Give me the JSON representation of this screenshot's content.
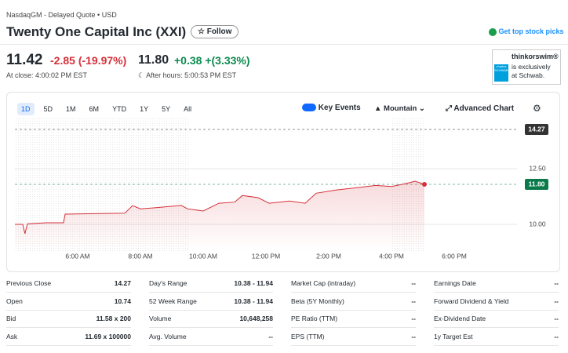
{
  "header": {
    "exchange": "NasdaqGM - Delayed Quote • USD",
    "title": "Twenty One Capital Inc (XXI)",
    "follow": "Follow",
    "promo": "Get top stock picks"
  },
  "quote": {
    "price": "11.42",
    "change": "-2.85",
    "change_pct": "(-19.97%)",
    "close_time": "At close: 4:00:02 PM EST",
    "ah_price": "11.80",
    "ah_change": "+0.38",
    "ah_change_pct": "+(3.33%)",
    "ah_time": "After hours: 5:00:53 PM EST"
  },
  "ad": {
    "brand": "thinkorswim®",
    "line1": "is exclusively",
    "line2": "at Schwab.",
    "logo": "charles SCHWAB"
  },
  "toolbar": {
    "ranges": [
      "1D",
      "5D",
      "1M",
      "6M",
      "YTD",
      "1Y",
      "5Y",
      "All"
    ],
    "key_events": "Key Events",
    "chart_type": "Mountain",
    "advanced": "Advanced Chart"
  },
  "chart_data": {
    "type": "line",
    "series": [
      {
        "name": "XXI",
        "color": "#d6303a",
        "x": [
          4.0,
          4.25,
          4.32,
          4.4,
          5.0,
          5.55,
          5.6,
          6.5,
          7.5,
          7.75,
          8.0,
          8.5,
          9.3,
          9.5,
          10.0,
          10.5,
          11.0,
          11.25,
          11.75,
          12.1,
          12.75,
          13.25,
          13.6,
          14.25,
          14.9,
          15.5,
          16.0,
          16.5,
          16.75,
          17.05
        ],
        "values": [
          10.0,
          10.0,
          9.58,
          10.02,
          10.07,
          10.07,
          10.46,
          10.48,
          10.5,
          10.84,
          10.7,
          10.75,
          10.85,
          10.7,
          10.6,
          10.95,
          11.0,
          11.3,
          11.2,
          10.95,
          11.05,
          10.95,
          11.4,
          11.55,
          11.65,
          11.75,
          11.7,
          11.85,
          11.94,
          11.8
        ]
      }
    ],
    "xlim": [
      4,
      20
    ],
    "xticks": [
      {
        "value": 6,
        "label": "6:00 AM"
      },
      {
        "value": 8,
        "label": "8:00 AM"
      },
      {
        "value": 10,
        "label": "10:00 AM"
      },
      {
        "value": 12,
        "label": "12:00 PM"
      },
      {
        "value": 14,
        "label": "2:00 PM"
      },
      {
        "value": 16,
        "label": "4:00 PM"
      },
      {
        "value": 18,
        "label": "6:00 PM"
      }
    ],
    "ylim": [
      8.8,
      14.8
    ],
    "yticks": [
      {
        "value": 10,
        "label": "10.00"
      },
      {
        "value": 12.5,
        "label": "12.50"
      }
    ],
    "reference_lines": [
      {
        "value": 14.27,
        "color": "#333333"
      },
      {
        "value": 11.8,
        "label": "11.80",
        "color": "#0b7a4b"
      }
    ],
    "grid": true
  },
  "stats": [
    [
      [
        "Previous Close",
        "14.27"
      ],
      [
        "Open",
        "10.74"
      ],
      [
        "Bid",
        "11.58 x 200"
      ],
      [
        "Ask",
        "11.69 x 100000"
      ]
    ],
    [
      [
        "Day's Range",
        "10.38 - 11.94"
      ],
      [
        "52 Week Range",
        "10.38 - 11.94"
      ],
      [
        "Volume",
        "10,648,258"
      ],
      [
        "Avg. Volume",
        "--"
      ]
    ],
    [
      [
        "Market Cap (intraday)",
        "--"
      ],
      [
        "Beta (5Y Monthly)",
        "--"
      ],
      [
        "PE Ratio (TTM)",
        "--"
      ],
      [
        "EPS (TTM)",
        "--"
      ]
    ],
    [
      [
        "Earnings Date",
        "--"
      ],
      [
        "Forward Dividend & Yield",
        "--"
      ],
      [
        "Ex-Dividend Date",
        "--"
      ],
      [
        "1y Target Est",
        "--"
      ]
    ]
  ]
}
